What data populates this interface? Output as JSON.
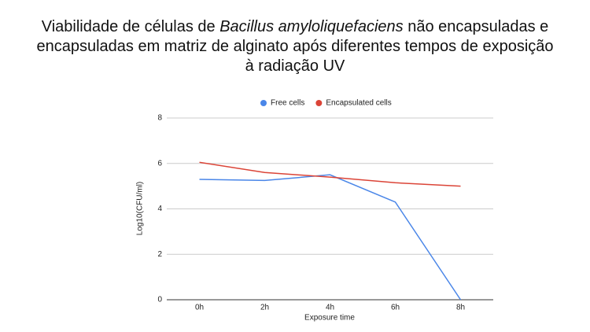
{
  "chart_data": {
    "type": "line",
    "title_parts": [
      "Viabilidade de células de ",
      "Bacillus amyloliquefaciens",
      " não encapsuladas e encapsuladas em matriz de alginato após diferentes tempos de exposição à radiação UV"
    ],
    "x_label": "Exposure time",
    "y_label": "Log10(CFU/ml)",
    "categories": [
      "0h",
      "2h",
      "4h",
      "6h",
      "8h"
    ],
    "series": [
      {
        "name": "Free cells",
        "color": "#4a86e8",
        "values": [
          5.3,
          5.25,
          5.5,
          4.3,
          0
        ]
      },
      {
        "name": "Encapsulated cells",
        "color": "#db4437",
        "values": [
          6.05,
          5.6,
          5.4,
          5.15,
          5.0
        ]
      }
    ],
    "ylim": [
      0,
      8
    ],
    "yticks": [
      0,
      2,
      4,
      6,
      8
    ],
    "grid": true,
    "legend": "top"
  }
}
